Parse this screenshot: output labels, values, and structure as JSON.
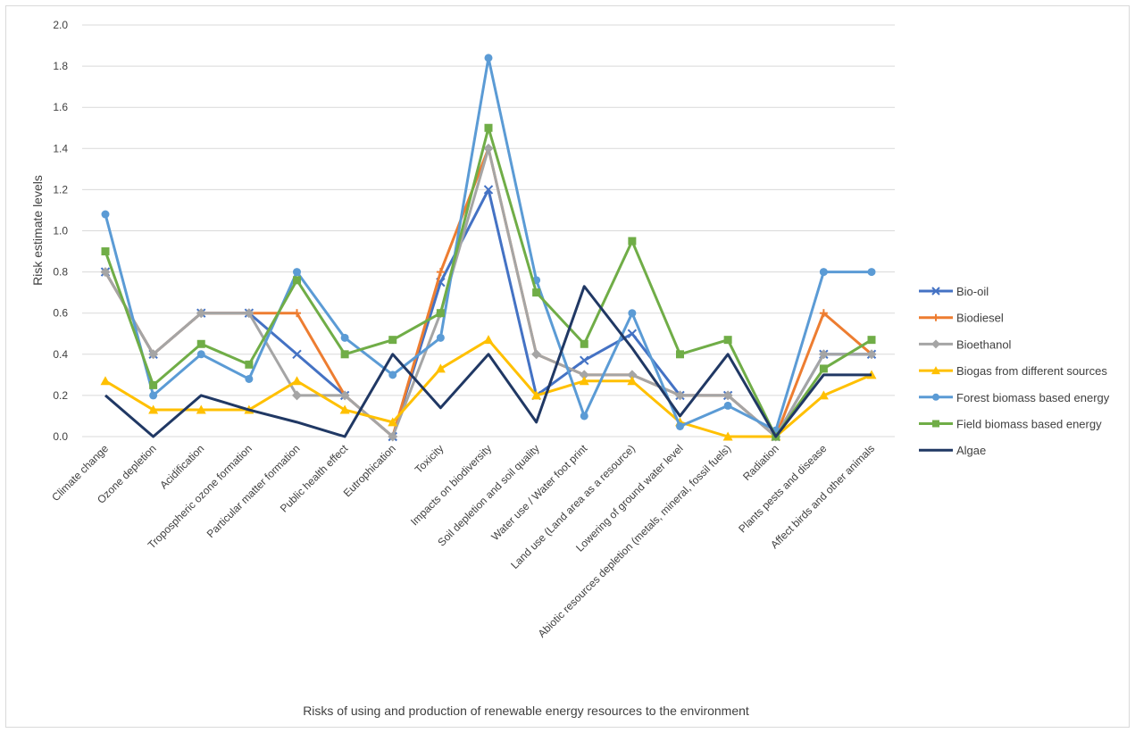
{
  "chart_data": {
    "type": "line",
    "title": "",
    "xlabel": "Risks of using and production of renewable energy resources to the environment",
    "ylabel": "Risk estimate levels",
    "ylim": [
      0,
      2.0
    ],
    "yticks": [
      "0.0",
      "0.2",
      "0.4",
      "0.6",
      "0.8",
      "1.0",
      "1.2",
      "1.4",
      "1.6",
      "1.8",
      "2.0"
    ],
    "grid": true,
    "legend_position": "right",
    "categories": [
      "Climate change",
      "Ozone depletion",
      "Acidification",
      "Tropospheric ozone formation",
      "Particular matter formation",
      "Public health effect",
      "Eutrophication",
      "Toxicity",
      "Impacts on biodiversity",
      "Soil depletion and soil quality",
      "Water use / Water foot print",
      "Land use (Land area as a resource)",
      "Lowering of ground water level",
      "Abiotic resources depletion (metals, mineral, fossil fuels)",
      "Radiation",
      "Plants pests and disease",
      "Affect birds and other animals"
    ],
    "series": [
      {
        "name": "Bio-oil",
        "color": "#4472c4",
        "marker": "x",
        "values": [
          0.8,
          0.4,
          0.6,
          0.6,
          0.4,
          0.2,
          0.0,
          0.75,
          1.2,
          0.2,
          0.37,
          0.5,
          0.2,
          0.2,
          0.0,
          0.4,
          0.4
        ]
      },
      {
        "name": "Biodiesel",
        "color": "#ed7d31",
        "marker": "plus",
        "values": [
          0.8,
          0.4,
          0.6,
          0.6,
          0.6,
          0.2,
          0.0,
          0.8,
          1.4,
          0.4,
          0.3,
          0.3,
          0.2,
          0.2,
          0.0,
          0.6,
          0.4
        ]
      },
      {
        "name": "Bioethanol",
        "color": "#a5a5a5",
        "marker": "diamond",
        "values": [
          0.8,
          0.4,
          0.6,
          0.6,
          0.2,
          0.2,
          0.0,
          0.6,
          1.4,
          0.4,
          0.3,
          0.3,
          0.2,
          0.2,
          0.0,
          0.4,
          0.4
        ]
      },
      {
        "name": "Biogas from different sources",
        "color": "#ffc000",
        "marker": "triangle",
        "values": [
          0.27,
          0.13,
          0.13,
          0.13,
          0.27,
          0.13,
          0.07,
          0.33,
          0.47,
          0.2,
          0.27,
          0.27,
          0.07,
          0.0,
          0.0,
          0.2,
          0.3
        ]
      },
      {
        "name": "Forest biomass based energy",
        "color": "#5b9bd5",
        "marker": "circle",
        "values": [
          1.08,
          0.2,
          0.4,
          0.28,
          0.8,
          0.48,
          0.3,
          0.48,
          1.84,
          0.76,
          0.1,
          0.6,
          0.05,
          0.15,
          0.03,
          0.8,
          0.8
        ]
      },
      {
        "name": "Field biomass based energy",
        "color": "#70ad47",
        "marker": "square",
        "values": [
          0.9,
          0.25,
          0.45,
          0.35,
          0.76,
          0.4,
          0.47,
          0.6,
          1.5,
          0.7,
          0.45,
          0.95,
          0.4,
          0.47,
          0.0,
          0.33,
          0.47
        ]
      },
      {
        "name": "Algae",
        "color": "#203864",
        "marker": "none",
        "values": [
          0.2,
          0.0,
          0.2,
          0.13,
          0.07,
          0.0,
          0.4,
          0.14,
          0.4,
          0.07,
          0.73,
          0.43,
          0.1,
          0.4,
          0.0,
          0.3,
          0.3
        ]
      }
    ]
  }
}
